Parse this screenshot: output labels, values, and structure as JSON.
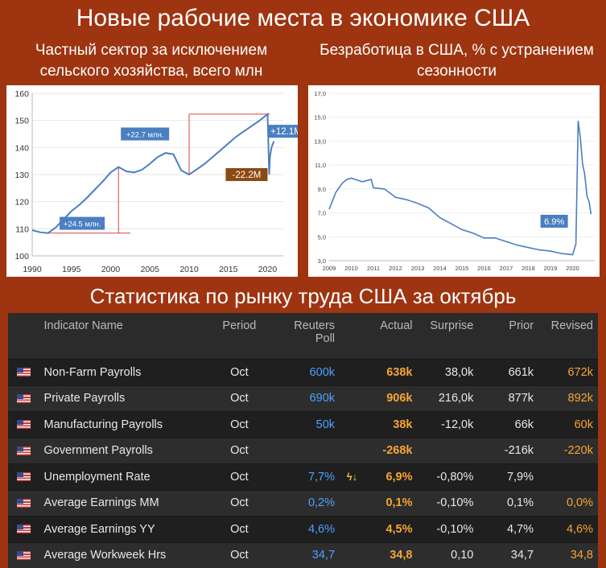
{
  "header": {
    "title": "Новые рабочие места в экономике США",
    "left_subtitle": "Частный сектор за исключением сельского хозяйства, всего млн",
    "right_subtitle": "Безработица в США, % с устранением сезонности",
    "table_title": "Статистика по рынку труда США за октябрь"
  },
  "chart_data": [
    {
      "type": "line",
      "x": [
        1990,
        1991,
        1992,
        1993,
        1994,
        1995,
        1996,
        1997,
        1998,
        1999,
        2000,
        2001,
        2002,
        2003,
        2004,
        2005,
        2006,
        2007,
        2008,
        2009,
        2010,
        2011,
        2012,
        2013,
        2014,
        2015,
        2016,
        2017,
        2018,
        2019,
        2020.0,
        2020.2,
        2020.3,
        2020.5,
        2020.8
      ],
      "series": [
        {
          "values": [
            109.5,
            108.7,
            108.4,
            110.5,
            113.5,
            116.5,
            118.8,
            121.5,
            124.5,
            127.5,
            130.8,
            132.8,
            131.2,
            130.8,
            131.8,
            134.0,
            136.5,
            138.0,
            137.5,
            131.5,
            130.0,
            132.0,
            134.0,
            136.5,
            139.0,
            141.5,
            144.0,
            146.0,
            148.0,
            150.0,
            152.3,
            130.0,
            136.5,
            140.0,
            142.3
          ]
        }
      ],
      "ylim": [
        100,
        160
      ],
      "yticks": [
        100,
        110,
        120,
        130,
        140,
        150,
        160
      ],
      "xticks": [
        1990,
        1995,
        2000,
        2005,
        2010,
        2015,
        2020
      ],
      "annotations": [
        "+24.5 млн.",
        "+22.7 млн.",
        "-22.2M",
        "+12.1M"
      ],
      "annotation_colors": [
        "#4a7fc1",
        "#4a7fc1",
        "#8a4a12",
        "#4a7fc1"
      ],
      "line_color": "#4a7fc1"
    },
    {
      "type": "line",
      "x": [
        2009.0,
        2009.3,
        2009.6,
        2009.8,
        2010.0,
        2010.5,
        2010.9,
        2011.0,
        2011.5,
        2012.0,
        2012.5,
        2013.0,
        2013.5,
        2014.0,
        2014.5,
        2015.0,
        2015.5,
        2016.0,
        2016.5,
        2017.0,
        2017.5,
        2018.0,
        2018.5,
        2019.0,
        2019.5,
        2020.0,
        2020.15,
        2020.25,
        2020.35,
        2020.45,
        2020.55,
        2020.65,
        2020.75,
        2020.83
      ],
      "series": [
        {
          "values": [
            7.3,
            8.7,
            9.5,
            9.8,
            9.9,
            9.6,
            9.8,
            9.1,
            9.0,
            8.3,
            8.1,
            7.8,
            7.4,
            6.6,
            6.1,
            5.6,
            5.3,
            4.9,
            4.9,
            4.6,
            4.3,
            4.1,
            3.9,
            3.8,
            3.6,
            3.5,
            4.4,
            14.7,
            13.3,
            11.1,
            10.2,
            8.4,
            7.9,
            6.9
          ]
        }
      ],
      "ylim": [
        3.0,
        17.0
      ],
      "yticks": [
        "3,0",
        "5,0",
        "7,0",
        "9,0",
        "11,0",
        "13,0",
        "15,0",
        "17,0"
      ],
      "xticks": [
        2009,
        2010,
        2011,
        2012,
        2013,
        2014,
        2015,
        2016,
        2017,
        2018,
        2019,
        2020
      ],
      "annotations": [
        "6.9%"
      ],
      "annotation_colors": [
        "#4a7fc1"
      ],
      "line_color": "#4a7fc1"
    }
  ],
  "table": {
    "headers": {
      "name": "Indicator Name",
      "period": "Period",
      "poll_1": "Reuters",
      "poll_2": "Poll",
      "actual": "Actual",
      "surprise": "Surprise",
      "prior": "Prior",
      "revised": "Revised"
    },
    "rows": [
      {
        "name": "Non-Farm Payrolls",
        "period": "Oct",
        "poll": "600k",
        "icon": "",
        "actual": "638k",
        "surprise": "38,0k",
        "prior": "661k",
        "revised": "672k"
      },
      {
        "name": "Private Payrolls",
        "period": "Oct",
        "poll": "690k",
        "icon": "",
        "actual": "906k",
        "surprise": "216,0k",
        "prior": "877k",
        "revised": "892k"
      },
      {
        "name": "Manufacturing Payrolls",
        "period": "Oct",
        "poll": "50k",
        "icon": "",
        "actual": "38k",
        "surprise": "-12,0k",
        "prior": "66k",
        "revised": "60k"
      },
      {
        "name": "Government Payrolls",
        "period": "Oct",
        "poll": "",
        "icon": "",
        "actual": "-268k",
        "surprise": "",
        "prior": "-216k",
        "revised": "-220k"
      },
      {
        "name": "Unemployment Rate",
        "period": "Oct",
        "poll": "7,7%",
        "icon": "lightning-down-arrow-icon",
        "actual": "6,9%",
        "surprise": "-0,80%",
        "prior": "7,9%",
        "revised": ""
      },
      {
        "name": "Average Earnings MM",
        "period": "Oct",
        "poll": "0,2%",
        "icon": "",
        "actual": "0,1%",
        "surprise": "-0,10%",
        "prior": "0,1%",
        "revised": "0,0%"
      },
      {
        "name": "Average Earnings YY",
        "period": "Oct",
        "poll": "4,6%",
        "icon": "",
        "actual": "4,5%",
        "surprise": "-0,10%",
        "prior": "4,7%",
        "revised": "4,6%"
      },
      {
        "name": "Average Workweek Hrs",
        "period": "Oct",
        "poll": "34,7",
        "icon": "",
        "actual": "34,8",
        "surprise": "0,10",
        "prior": "34,7",
        "revised": "34,8"
      }
    ],
    "colors": {
      "poll": "#4aa3ff",
      "actual": "#f7a534",
      "revised": "#f7a534",
      "flag": "us-flag-icon"
    }
  }
}
